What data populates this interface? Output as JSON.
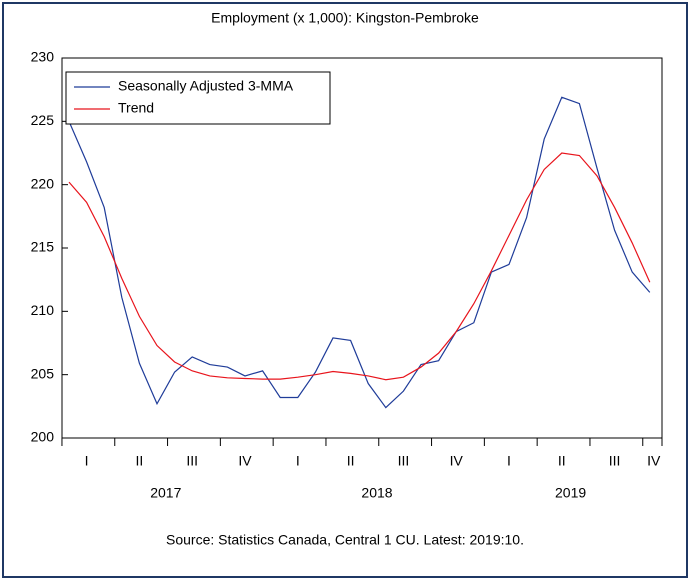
{
  "chart_data": {
    "type": "line",
    "title": "Employment (x 1,000): Kingston-Pembroke",
    "source": "Source: Statistics Canada, Central 1 CU. Latest: 2019:10.",
    "categories": [
      null,
      null,
      null,
      null,
      null,
      null,
      null,
      null,
      null,
      null,
      null,
      null,
      null,
      null,
      null,
      null,
      null,
      null,
      null,
      null,
      null,
      null,
      null,
      null,
      null,
      null,
      null,
      null,
      null,
      null,
      null,
      null,
      null,
      null
    ],
    "quarter_labels": [
      "I",
      "II",
      "III",
      "IV",
      "I",
      "II",
      "III",
      "IV",
      "I",
      "II",
      "III",
      "IV"
    ],
    "years": [
      "2017",
      "2018",
      "2019"
    ],
    "series": [
      {
        "name": "Seasonally Adjusted 3-MMA",
        "color": "#1f3c99",
        "values": [
          225.0,
          221.8,
          218.2,
          211.1,
          205.9,
          202.7,
          205.2,
          206.4,
          205.8,
          205.6,
          204.9,
          205.3,
          203.2,
          203.2,
          205.2,
          207.9,
          207.7,
          204.3,
          202.4,
          203.7,
          205.8,
          206.1,
          208.4,
          209.1,
          213.1,
          213.7,
          217.4,
          223.6,
          226.9,
          226.4,
          221.3,
          216.4,
          213.1,
          211.5
        ]
      },
      {
        "name": "Trend",
        "color": "#e8141c",
        "values": [
          220.2,
          218.6,
          215.9,
          212.6,
          209.6,
          207.3,
          206.0,
          205.3,
          204.9,
          204.75,
          204.7,
          204.65,
          204.65,
          204.8,
          205.0,
          205.25,
          205.1,
          204.9,
          204.6,
          204.8,
          205.6,
          206.7,
          208.4,
          210.6,
          213.2,
          216.0,
          218.8,
          221.2,
          222.5,
          222.3,
          220.7,
          218.2,
          215.4,
          212.3
        ]
      }
    ],
    "ylim": [
      200,
      230
    ],
    "yticks": [
      200,
      205,
      210,
      215,
      220,
      225,
      230
    ]
  }
}
